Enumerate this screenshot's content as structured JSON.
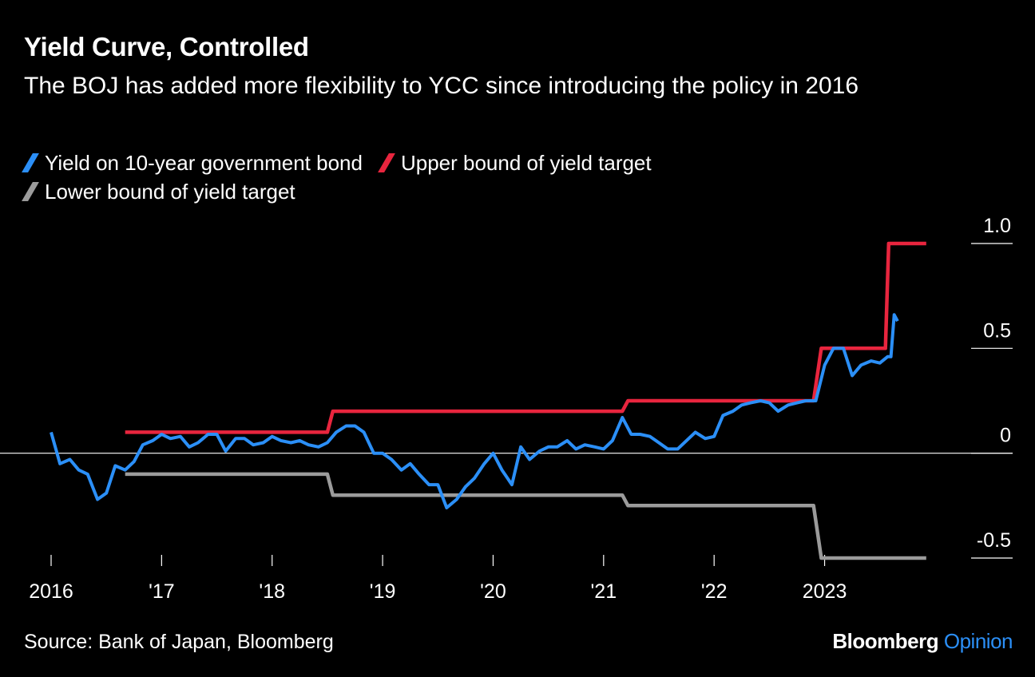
{
  "header": {
    "title": "Yield Curve, Controlled",
    "subtitle": "The BOJ has added more flexibility to YCC since introducing the policy in 2016"
  },
  "footer": {
    "source": "Source: Bank of Japan, Bloomberg",
    "brand_main": "Bloomberg",
    "brand_sub": "Opinion"
  },
  "chart_data": {
    "type": "line",
    "title": "Yield Curve, Controlled",
    "subtitle": "The BOJ has added more flexibility to YCC since introducing the policy in 2016",
    "xlabel": "",
    "ylabel": "",
    "xlim": [
      2016,
      2023.95
    ],
    "ylim": [
      -0.5,
      1.0
    ],
    "y_ticks": [
      1.0,
      0.5,
      0,
      -0.5
    ],
    "y_tick_labels": [
      "1.0",
      "0.5",
      "0",
      "-0.5"
    ],
    "x_ticks": [
      2016,
      2017,
      2018,
      2019,
      2020,
      2021,
      2022,
      2023
    ],
    "x_tick_labels": [
      "2016",
      "'17",
      "'18",
      "'19",
      "'20",
      "'21",
      "'22",
      "2023"
    ],
    "grid": false,
    "legend_position": "top-left",
    "series": [
      {
        "name": "Yield on 10-year government bond",
        "color": "#2b8ff7",
        "x": [
          2016.0,
          2016.08,
          2016.17,
          2016.25,
          2016.33,
          2016.42,
          2016.5,
          2016.58,
          2016.67,
          2016.75,
          2016.83,
          2016.92,
          2017.0,
          2017.08,
          2017.17,
          2017.25,
          2017.33,
          2017.42,
          2017.5,
          2017.58,
          2017.67,
          2017.75,
          2017.83,
          2017.92,
          2018.0,
          2018.08,
          2018.17,
          2018.25,
          2018.33,
          2018.42,
          2018.5,
          2018.58,
          2018.67,
          2018.75,
          2018.83,
          2018.92,
          2019.0,
          2019.08,
          2019.17,
          2019.25,
          2019.33,
          2019.42,
          2019.5,
          2019.58,
          2019.67,
          2019.75,
          2019.83,
          2019.92,
          2020.0,
          2020.08,
          2020.17,
          2020.25,
          2020.33,
          2020.42,
          2020.5,
          2020.58,
          2020.67,
          2020.75,
          2020.83,
          2020.92,
          2021.0,
          2021.08,
          2021.17,
          2021.25,
          2021.33,
          2021.42,
          2021.5,
          2021.58,
          2021.67,
          2021.75,
          2021.83,
          2021.92,
          2022.0,
          2022.08,
          2022.17,
          2022.25,
          2022.33,
          2022.42,
          2022.5,
          2022.58,
          2022.67,
          2022.75,
          2022.83,
          2022.92,
          2023.0,
          2023.08,
          2023.17,
          2023.25,
          2023.33,
          2023.42,
          2023.5,
          2023.57,
          2023.6,
          2023.63,
          2023.66
        ],
        "values": [
          0.1,
          -0.05,
          -0.03,
          -0.08,
          -0.1,
          -0.22,
          -0.19,
          -0.06,
          -0.08,
          -0.04,
          0.04,
          0.06,
          0.09,
          0.07,
          0.08,
          0.03,
          0.05,
          0.09,
          0.09,
          0.01,
          0.07,
          0.07,
          0.04,
          0.05,
          0.08,
          0.06,
          0.05,
          0.06,
          0.04,
          0.03,
          0.05,
          0.1,
          0.13,
          0.13,
          0.1,
          0.0,
          0.0,
          -0.03,
          -0.08,
          -0.05,
          -0.1,
          -0.15,
          -0.15,
          -0.26,
          -0.22,
          -0.16,
          -0.12,
          -0.05,
          0.0,
          -0.08,
          -0.15,
          0.03,
          -0.03,
          0.01,
          0.03,
          0.03,
          0.06,
          0.02,
          0.04,
          0.03,
          0.02,
          0.06,
          0.17,
          0.09,
          0.09,
          0.08,
          0.05,
          0.02,
          0.02,
          0.06,
          0.1,
          0.07,
          0.08,
          0.18,
          0.2,
          0.23,
          0.24,
          0.25,
          0.24,
          0.2,
          0.23,
          0.24,
          0.25,
          0.25,
          0.42,
          0.5,
          0.5,
          0.37,
          0.42,
          0.44,
          0.43,
          0.46,
          0.46,
          0.66,
          0.63
        ]
      },
      {
        "name": "Upper bound of yield target",
        "color": "#e8253e",
        "x": [
          2016.67,
          2018.5,
          2018.55,
          2021.17,
          2021.22,
          2022.9,
          2022.97,
          2023.55,
          2023.58,
          2023.92
        ],
        "values": [
          0.1,
          0.1,
          0.2,
          0.2,
          0.25,
          0.25,
          0.5,
          0.5,
          1.0,
          1.0
        ]
      },
      {
        "name": "Lower bound of yield target",
        "color": "#9b9b9b",
        "x": [
          2016.67,
          2018.5,
          2018.55,
          2021.17,
          2021.22,
          2022.9,
          2022.97,
          2023.92
        ],
        "values": [
          -0.1,
          -0.1,
          -0.2,
          -0.2,
          -0.25,
          -0.25,
          -0.5,
          -0.5
        ]
      }
    ]
  }
}
